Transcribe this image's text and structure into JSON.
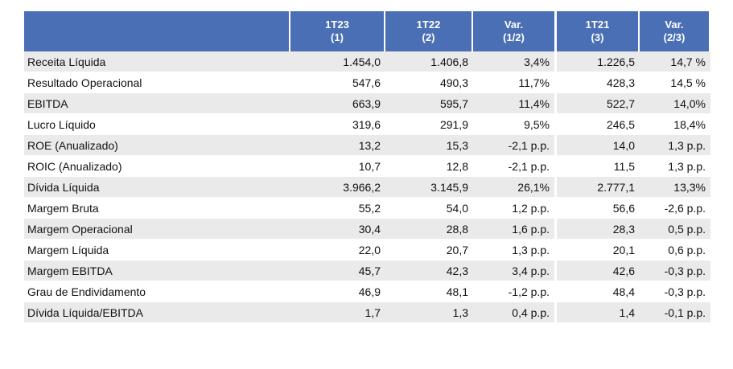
{
  "table": {
    "headers": [
      {
        "line1": "",
        "line2": ""
      },
      {
        "line1": "1T23",
        "line2": "(1)"
      },
      {
        "line1": "1T22",
        "line2": "(2)"
      },
      {
        "line1": "Var.",
        "line2": "(1/2)"
      },
      {
        "line1": "1T21",
        "line2": "(3)"
      },
      {
        "line1": "Var.",
        "line2": "(2/3)"
      }
    ],
    "rows": [
      [
        "Receita Líquida",
        "1.454,0",
        "1.406,8",
        "3,4%",
        "1.226,5",
        "14,7 %"
      ],
      [
        "Resultado Operacional",
        "547,6",
        "490,3",
        "11,7%",
        "428,3",
        "14,5 %"
      ],
      [
        "EBITDA",
        "663,9",
        "595,7",
        "11,4%",
        "522,7",
        "14,0%"
      ],
      [
        "Lucro Líquido",
        "319,6",
        "291,9",
        "9,5%",
        "246,5",
        "18,4%"
      ],
      [
        "ROE (Anualizado)",
        "13,2",
        "15,3",
        "-2,1 p.p.",
        "14,0",
        "1,3 p.p."
      ],
      [
        "ROIC (Anualizado)",
        "10,7",
        "12,8",
        "-2,1 p.p.",
        "11,5",
        "1,3 p.p."
      ],
      [
        "Dívida Líquida",
        "3.966,2",
        "3.145,9",
        "26,1%",
        "2.777,1",
        "13,3%"
      ],
      [
        "Margem Bruta",
        "55,2",
        "54,0",
        "1,2 p.p.",
        "56,6",
        "-2,6 p.p."
      ],
      [
        "Margem Operacional",
        "30,4",
        "28,8",
        "1,6 p.p.",
        "28,3",
        "0,5 p.p."
      ],
      [
        "Margem Líquida",
        "22,0",
        "20,7",
        "1,3 p.p.",
        "20,1",
        "0,6 p.p."
      ],
      [
        "Margem EBITDA",
        "45,7",
        "42,3",
        "3,4 p.p.",
        "42,6",
        "-0,3 p.p."
      ],
      [
        "Grau de Endividamento",
        "46,9",
        "48,1",
        "-1,2 p.p.",
        "48,4",
        "-0,3 p.p."
      ],
      [
        "Dívida Líquida/EBITDA",
        "1,7",
        "1,3",
        "0,4 p.p.",
        "1,4",
        "-0,1 p.p."
      ]
    ]
  },
  "colors": {
    "header_bg": "#4a6fb5",
    "header_text": "#ffffff",
    "row_alt_bg": "#eaeaea"
  }
}
